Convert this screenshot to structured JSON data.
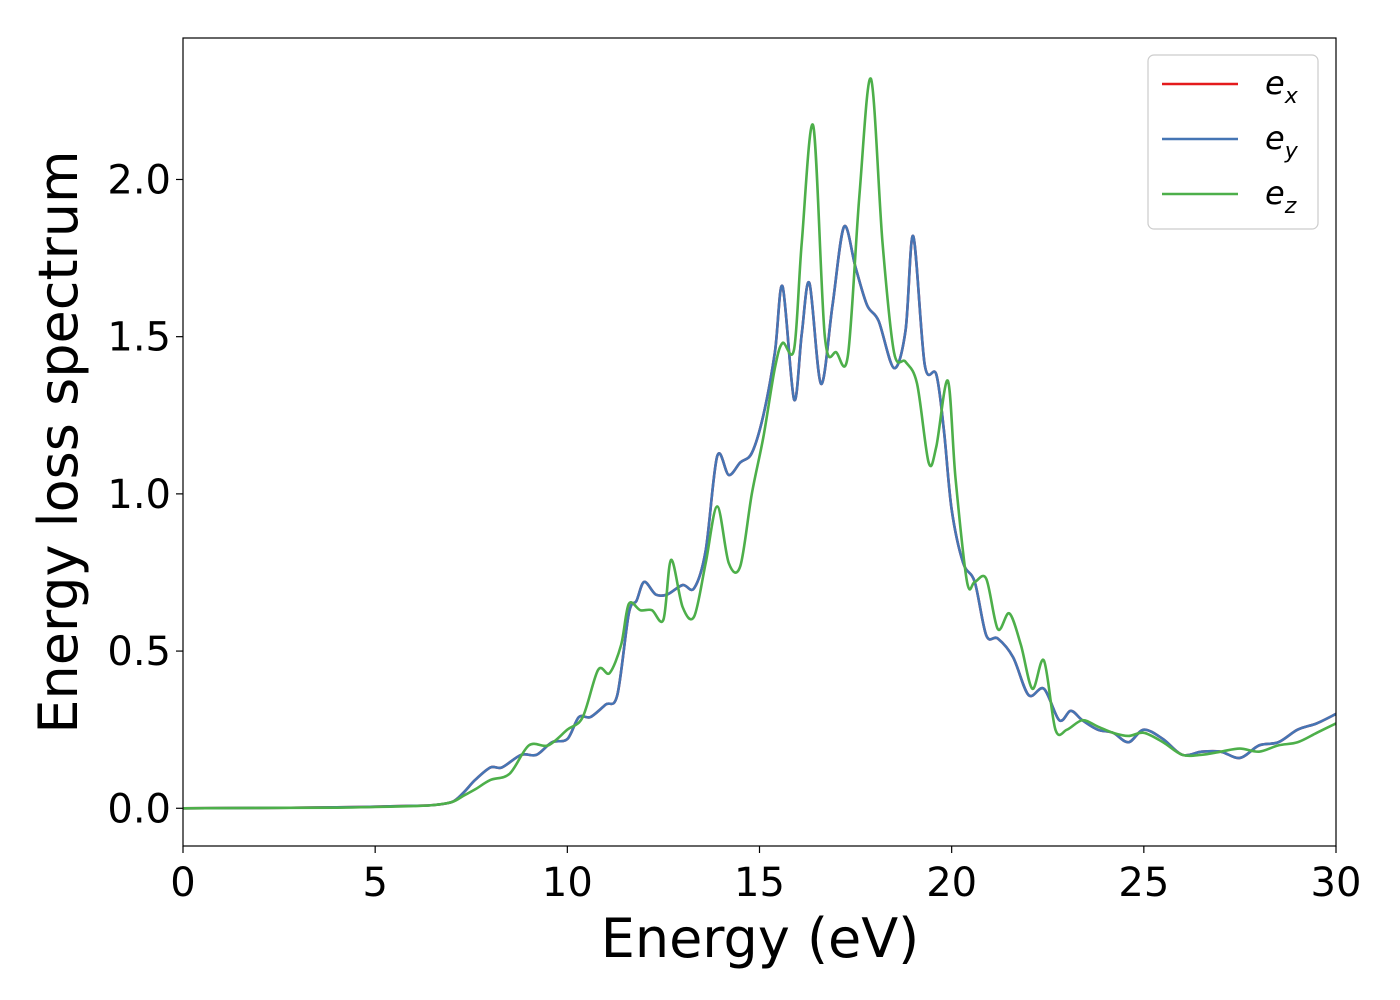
{
  "chart_data": {
    "type": "line",
    "title": "",
    "xlabel": "Energy (eV)",
    "ylabel": "Energy loss spectrum",
    "xlim": [
      0,
      30
    ],
    "ylim": [
      -0.12,
      2.45
    ],
    "xticks": [
      0,
      5,
      10,
      15,
      20,
      25,
      30
    ],
    "xtick_labels": [
      "0",
      "5",
      "10",
      "15",
      "20",
      "25",
      "30"
    ],
    "yticks": [
      0.0,
      0.5,
      1.0,
      1.5,
      2.0
    ],
    "ytick_labels": [
      "0.0",
      "0.5",
      "1.0",
      "1.5",
      "2.0"
    ],
    "grid": false,
    "legend_position": "top-right",
    "series": [
      {
        "name": "e_x",
        "label_main": "e",
        "label_sub": "x",
        "color": "#e41a1c",
        "x": [
          0,
          2,
          4,
          5,
          6,
          6.5,
          7,
          7.3,
          7.6,
          8,
          8.3,
          8.8,
          9.2,
          9.6,
          10,
          10.3,
          10.6,
          11,
          11.3,
          11.6,
          11.8,
          12,
          12.3,
          12.6,
          13,
          13.3,
          13.6,
          13.9,
          14.2,
          14.5,
          14.8,
          15.1,
          15.4,
          15.6,
          15.9,
          16.1,
          16.3,
          16.6,
          16.9,
          17.2,
          17.5,
          17.8,
          18.1,
          18.5,
          18.8,
          19,
          19.3,
          19.6,
          19.8,
          20,
          20.3,
          20.6,
          20.9,
          21.2,
          21.6,
          22,
          22.4,
          22.8,
          23.1,
          23.4,
          23.8,
          24.2,
          24.6,
          25,
          25.5,
          26,
          26.5,
          27,
          27.5,
          28,
          28.5,
          29,
          29.5,
          30
        ],
        "y": [
          0,
          0.001,
          0.003,
          0.005,
          0.008,
          0.01,
          0.02,
          0.05,
          0.09,
          0.13,
          0.13,
          0.17,
          0.17,
          0.21,
          0.22,
          0.29,
          0.29,
          0.33,
          0.36,
          0.62,
          0.66,
          0.72,
          0.68,
          0.68,
          0.71,
          0.7,
          0.82,
          1.12,
          1.06,
          1.1,
          1.13,
          1.25,
          1.45,
          1.66,
          1.3,
          1.51,
          1.67,
          1.35,
          1.6,
          1.85,
          1.72,
          1.6,
          1.55,
          1.4,
          1.52,
          1.82,
          1.41,
          1.38,
          1.2,
          0.95,
          0.78,
          0.72,
          0.55,
          0.54,
          0.48,
          0.36,
          0.38,
          0.28,
          0.31,
          0.28,
          0.25,
          0.24,
          0.21,
          0.25,
          0.22,
          0.17,
          0.18,
          0.18,
          0.16,
          0.2,
          0.21,
          0.25,
          0.27,
          0.3
        ]
      },
      {
        "name": "e_y",
        "label_main": "e",
        "label_sub": "y",
        "color": "#4575b4",
        "x": [
          0,
          2,
          4,
          5,
          6,
          6.5,
          7,
          7.3,
          7.6,
          8,
          8.3,
          8.8,
          9.2,
          9.6,
          10,
          10.3,
          10.6,
          11,
          11.3,
          11.6,
          11.8,
          12,
          12.3,
          12.6,
          13,
          13.3,
          13.6,
          13.9,
          14.2,
          14.5,
          14.8,
          15.1,
          15.4,
          15.6,
          15.9,
          16.1,
          16.3,
          16.6,
          16.9,
          17.2,
          17.5,
          17.8,
          18.1,
          18.5,
          18.8,
          19,
          19.3,
          19.6,
          19.8,
          20,
          20.3,
          20.6,
          20.9,
          21.2,
          21.6,
          22,
          22.4,
          22.8,
          23.1,
          23.4,
          23.8,
          24.2,
          24.6,
          25,
          25.5,
          26,
          26.5,
          27,
          27.5,
          28,
          28.5,
          29,
          29.5,
          30
        ],
        "y": [
          0,
          0.001,
          0.003,
          0.005,
          0.008,
          0.01,
          0.02,
          0.05,
          0.09,
          0.13,
          0.13,
          0.17,
          0.17,
          0.21,
          0.22,
          0.29,
          0.29,
          0.33,
          0.36,
          0.62,
          0.66,
          0.72,
          0.68,
          0.68,
          0.71,
          0.7,
          0.82,
          1.12,
          1.06,
          1.1,
          1.13,
          1.25,
          1.45,
          1.66,
          1.3,
          1.51,
          1.67,
          1.35,
          1.6,
          1.85,
          1.72,
          1.6,
          1.55,
          1.4,
          1.52,
          1.82,
          1.41,
          1.38,
          1.2,
          0.95,
          0.78,
          0.72,
          0.55,
          0.54,
          0.48,
          0.36,
          0.38,
          0.28,
          0.31,
          0.28,
          0.25,
          0.24,
          0.21,
          0.25,
          0.22,
          0.17,
          0.18,
          0.18,
          0.16,
          0.2,
          0.21,
          0.25,
          0.27,
          0.3
        ]
      },
      {
        "name": "e_z",
        "label_main": "e",
        "label_sub": "z",
        "color": "#4daf4a",
        "x": [
          0,
          2,
          4,
          5,
          6,
          6.5,
          7,
          7.3,
          7.6,
          8,
          8.5,
          9,
          9.5,
          10,
          10.4,
          10.8,
          11.1,
          11.4,
          11.6,
          11.9,
          12.2,
          12.5,
          12.7,
          13,
          13.3,
          13.6,
          13.9,
          14.2,
          14.5,
          14.8,
          15.1,
          15.4,
          15.6,
          15.9,
          16.1,
          16.4,
          16.7,
          17,
          17.3,
          17.6,
          17.9,
          18.2,
          18.5,
          18.8,
          19.1,
          19.4,
          19.6,
          19.9,
          20.1,
          20.4,
          20.6,
          20.9,
          21.2,
          21.5,
          21.8,
          22.1,
          22.4,
          22.7,
          23,
          23.4,
          23.8,
          24.2,
          24.6,
          25,
          25.5,
          26,
          26.5,
          27,
          27.5,
          28,
          28.5,
          29,
          29.5,
          30
        ],
        "y": [
          0,
          0.001,
          0.002,
          0.004,
          0.007,
          0.01,
          0.02,
          0.04,
          0.06,
          0.09,
          0.11,
          0.2,
          0.2,
          0.25,
          0.29,
          0.44,
          0.43,
          0.52,
          0.65,
          0.63,
          0.63,
          0.6,
          0.79,
          0.64,
          0.61,
          0.78,
          0.96,
          0.78,
          0.77,
          1.0,
          1.18,
          1.4,
          1.48,
          1.46,
          1.8,
          2.17,
          1.5,
          1.45,
          1.44,
          1.95,
          2.32,
          1.8,
          1.45,
          1.42,
          1.35,
          1.1,
          1.15,
          1.36,
          1.05,
          0.72,
          0.72,
          0.73,
          0.57,
          0.62,
          0.52,
          0.38,
          0.47,
          0.25,
          0.25,
          0.28,
          0.26,
          0.24,
          0.23,
          0.24,
          0.21,
          0.17,
          0.17,
          0.18,
          0.19,
          0.18,
          0.2,
          0.21,
          0.24,
          0.27
        ]
      }
    ]
  }
}
